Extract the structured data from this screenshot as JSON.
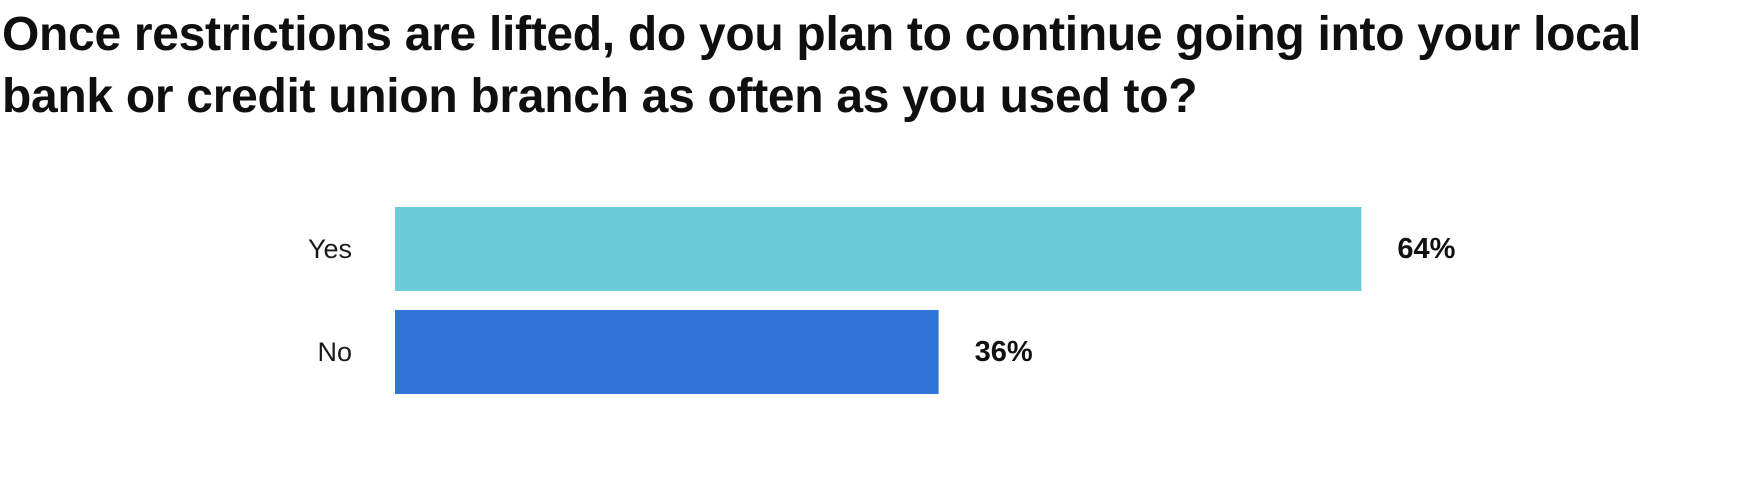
{
  "chart_data": {
    "type": "bar",
    "orientation": "horizontal",
    "title": "Once restrictions are lifted, do you plan to continue going into your local bank or credit union branch as often as you used to?",
    "categories": [
      "Yes",
      "No"
    ],
    "values": [
      64,
      36
    ],
    "value_labels": [
      "64%",
      "36%"
    ],
    "colors": [
      "#6ccbd8",
      "#2f74d9"
    ],
    "xlim": [
      0,
      100
    ],
    "grid": false,
    "legend": "none"
  }
}
